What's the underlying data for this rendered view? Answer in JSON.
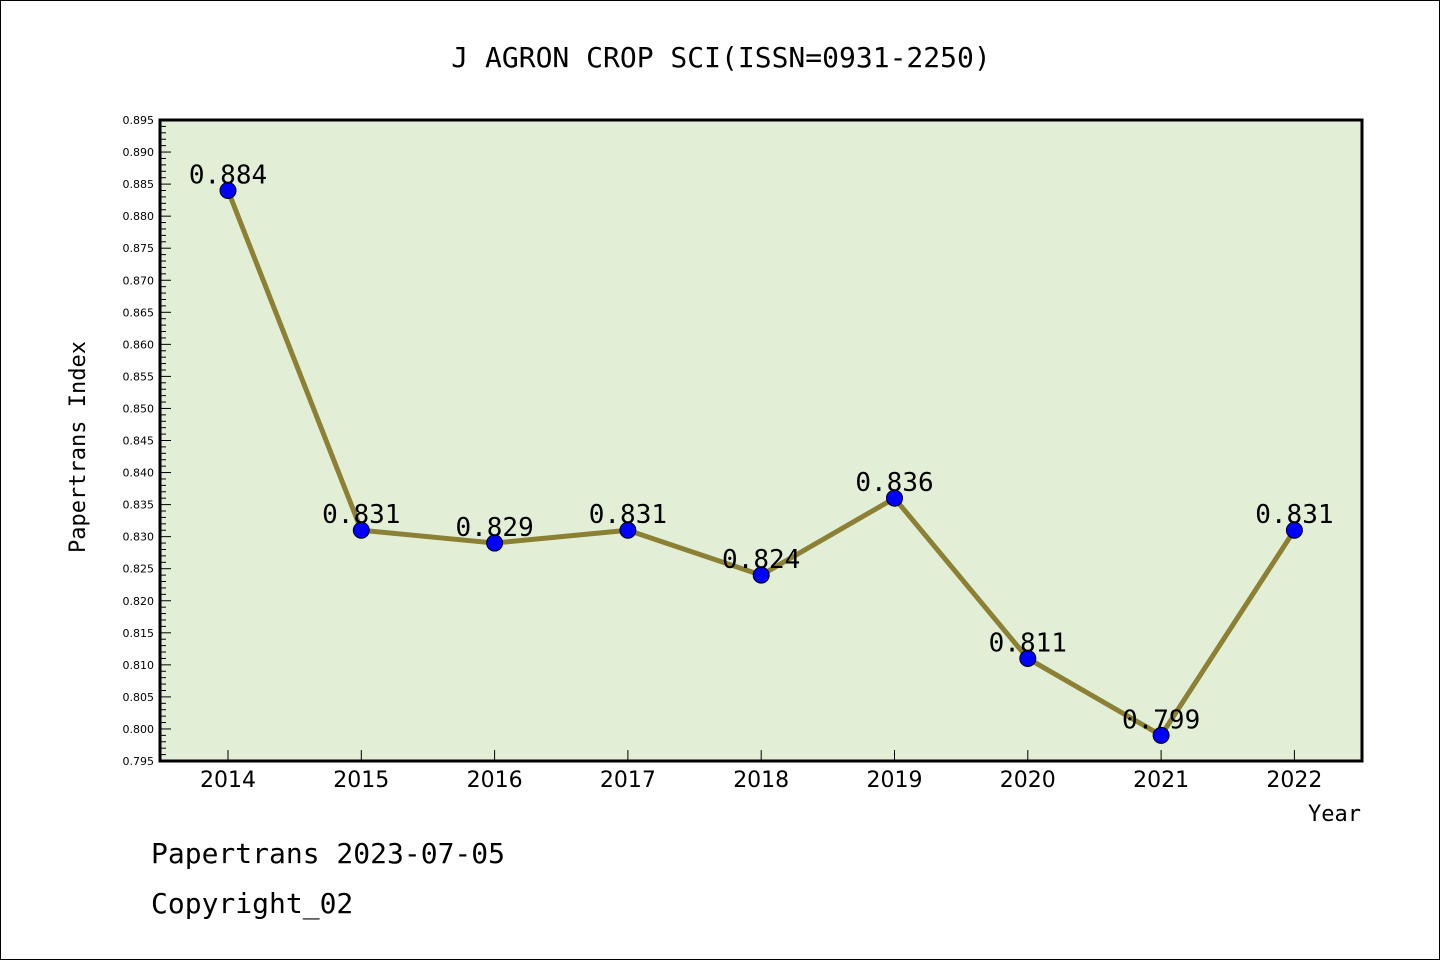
{
  "chart_data": {
    "type": "line",
    "title": "J AGRON CROP SCI(ISSN=0931-2250)",
    "xlabel": "Year",
    "ylabel": "Papertrans Index",
    "categories": [
      "2014",
      "2015",
      "2016",
      "2017",
      "2018",
      "2019",
      "2020",
      "2021",
      "2022"
    ],
    "series": [
      {
        "values": [
          0.884,
          0.831,
          0.829,
          0.831,
          0.824,
          0.836,
          0.811,
          0.799,
          0.831
        ]
      }
    ],
    "data_labels": [
      "0.884",
      "0.831",
      "0.829",
      "0.831",
      "0.824",
      "0.836",
      "0.811",
      "0.799",
      "0.831"
    ],
    "ylim": [
      0.795,
      0.895
    ],
    "yticks": [
      "0.795",
      "0.800",
      "0.805",
      "0.810",
      "0.815",
      "0.820",
      "0.825",
      "0.830",
      "0.835",
      "0.840",
      "0.845",
      "0.850",
      "0.855",
      "0.860",
      "0.865",
      "0.870",
      "0.875",
      "0.880",
      "0.885",
      "0.890",
      "0.895"
    ],
    "grid": false,
    "colors": {
      "plot_background": "#e2efd6",
      "line": "#8b8034",
      "marker": "#0000ff"
    }
  },
  "footer": {
    "line1": "Papertrans 2023-07-05",
    "line2": "Copyright_02"
  }
}
